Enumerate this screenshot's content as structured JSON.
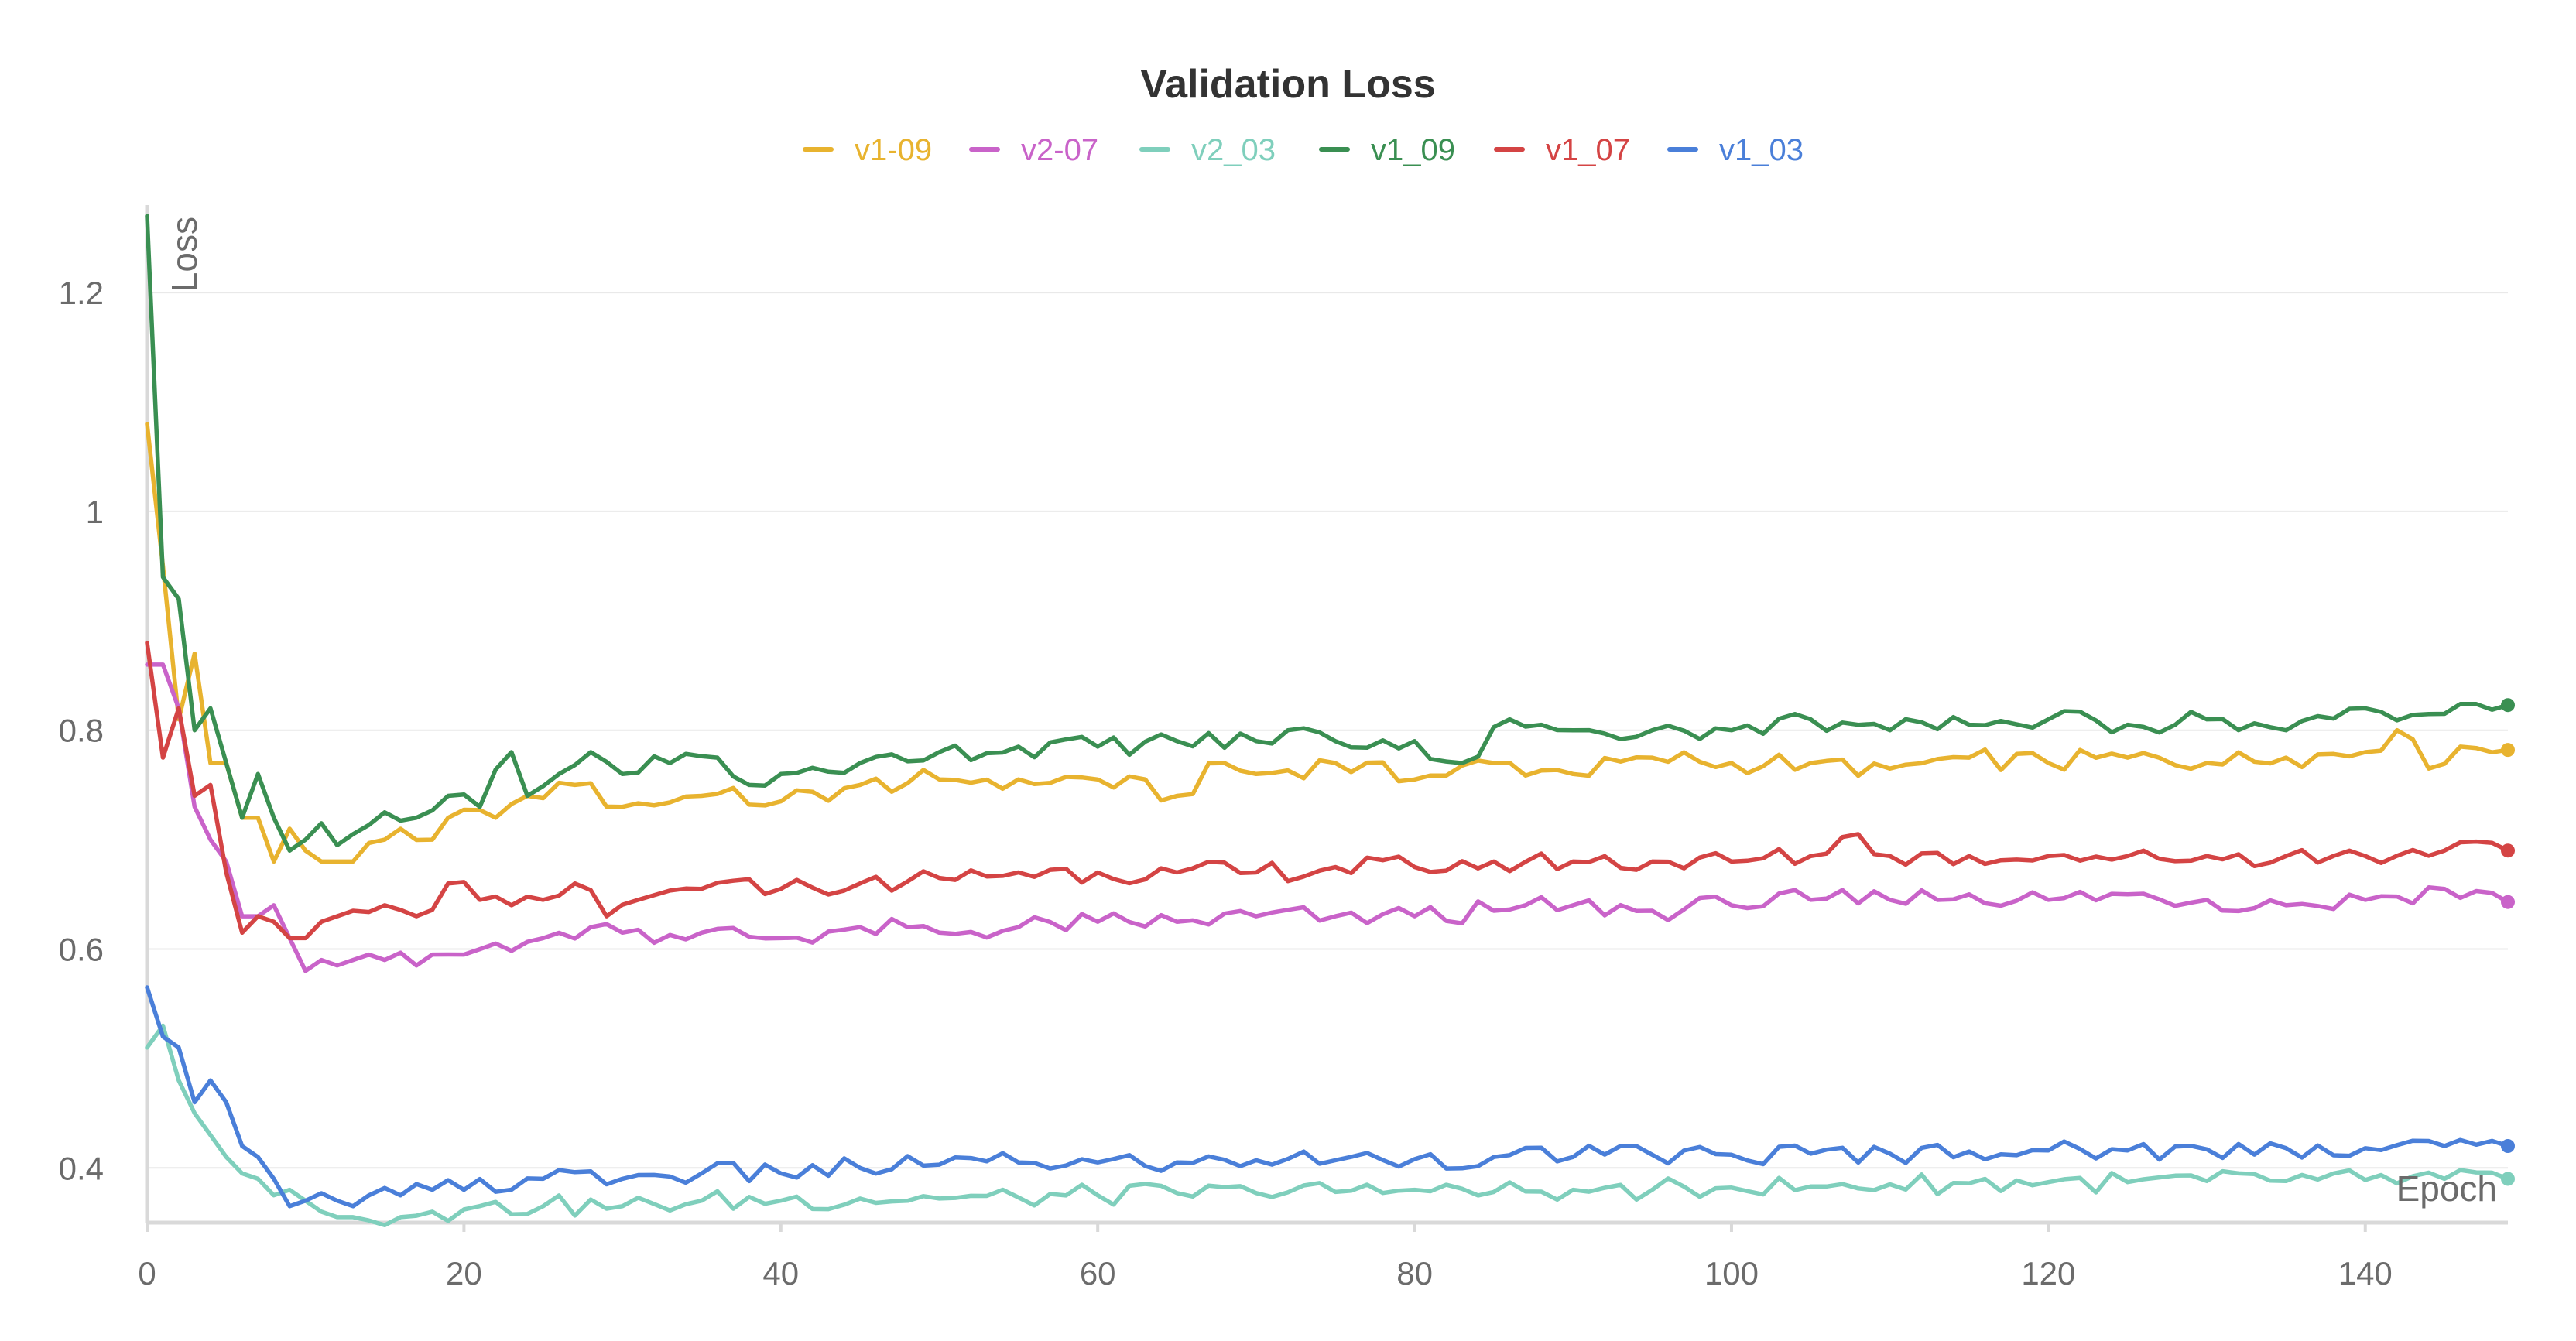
{
  "chart_data": {
    "type": "line",
    "title": "Validation Loss",
    "xlabel": "Epoch",
    "ylabel": "Loss",
    "xlim": [
      0,
      149
    ],
    "ylim": [
      0.35,
      1.28
    ],
    "x_ticks": [
      0,
      20,
      40,
      60,
      80,
      100,
      120,
      140
    ],
    "y_ticks": [
      0.4,
      0.6,
      0.8,
      1,
      1.2
    ],
    "y_tick_labels": [
      "0.4",
      "0.6",
      "0.8",
      "1",
      "1.2"
    ],
    "grid": true,
    "legend_position": "top-center",
    "series": [
      {
        "name": "v1-09",
        "color": "#e8b32f",
        "anchors": [
          [
            0,
            1.08
          ],
          [
            1,
            0.95
          ],
          [
            2,
            0.81
          ],
          [
            3,
            0.87
          ],
          [
            4,
            0.77
          ],
          [
            5,
            0.77
          ],
          [
            6,
            0.72
          ],
          [
            7,
            0.72
          ],
          [
            8,
            0.68
          ],
          [
            9,
            0.71
          ],
          [
            10,
            0.69
          ],
          [
            11,
            0.68
          ],
          [
            12,
            0.68
          ],
          [
            13,
            0.68
          ],
          [
            15,
            0.7
          ],
          [
            16,
            0.71
          ],
          [
            18,
            0.7
          ],
          [
            19,
            0.72
          ],
          [
            22,
            0.72
          ],
          [
            24,
            0.74
          ],
          [
            27,
            0.75
          ],
          [
            30,
            0.73
          ],
          [
            35,
            0.74
          ],
          [
            40,
            0.735
          ],
          [
            45,
            0.75
          ],
          [
            50,
            0.755
          ],
          [
            55,
            0.755
          ],
          [
            60,
            0.755
          ],
          [
            65,
            0.74
          ],
          [
            68,
            0.77
          ],
          [
            70,
            0.76
          ],
          [
            75,
            0.77
          ],
          [
            80,
            0.755
          ],
          [
            85,
            0.77
          ],
          [
            90,
            0.76
          ],
          [
            95,
            0.775
          ],
          [
            100,
            0.77
          ],
          [
            105,
            0.77
          ],
          [
            110,
            0.765
          ],
          [
            115,
            0.775
          ],
          [
            120,
            0.77
          ],
          [
            125,
            0.775
          ],
          [
            130,
            0.77
          ],
          [
            135,
            0.775
          ],
          [
            140,
            0.78
          ],
          [
            142,
            0.8
          ],
          [
            144,
            0.765
          ],
          [
            146,
            0.785
          ],
          [
            149,
            0.782
          ]
        ]
      },
      {
        "name": "v2-07",
        "color": "#c963c9",
        "anchors": [
          [
            0,
            0.86
          ],
          [
            1,
            0.86
          ],
          [
            2,
            0.82
          ],
          [
            3,
            0.73
          ],
          [
            4,
            0.7
          ],
          [
            5,
            0.68
          ],
          [
            6,
            0.63
          ],
          [
            7,
            0.63
          ],
          [
            8,
            0.64
          ],
          [
            9,
            0.61
          ],
          [
            10,
            0.58
          ],
          [
            11,
            0.59
          ],
          [
            12,
            0.585
          ],
          [
            13,
            0.59
          ],
          [
            15,
            0.59
          ],
          [
            17,
            0.585
          ],
          [
            18,
            0.595
          ],
          [
            20,
            0.595
          ],
          [
            22,
            0.605
          ],
          [
            25,
            0.61
          ],
          [
            28,
            0.62
          ],
          [
            30,
            0.615
          ],
          [
            35,
            0.615
          ],
          [
            40,
            0.61
          ],
          [
            45,
            0.62
          ],
          [
            50,
            0.615
          ],
          [
            55,
            0.62
          ],
          [
            60,
            0.625
          ],
          [
            65,
            0.625
          ],
          [
            70,
            0.63
          ],
          [
            75,
            0.63
          ],
          [
            80,
            0.63
          ],
          [
            85,
            0.635
          ],
          [
            90,
            0.64
          ],
          [
            95,
            0.635
          ],
          [
            100,
            0.64
          ],
          [
            105,
            0.645
          ],
          [
            110,
            0.645
          ],
          [
            115,
            0.65
          ],
          [
            120,
            0.645
          ],
          [
            125,
            0.65
          ],
          [
            130,
            0.645
          ],
          [
            135,
            0.64
          ],
          [
            140,
            0.645
          ],
          [
            145,
            0.655
          ],
          [
            149,
            0.643
          ]
        ]
      },
      {
        "name": "v2_03",
        "color": "#7fcfbc",
        "anchors": [
          [
            0,
            0.51
          ],
          [
            1,
            0.53
          ],
          [
            2,
            0.48
          ],
          [
            3,
            0.45
          ],
          [
            4,
            0.43
          ],
          [
            5,
            0.41
          ],
          [
            6,
            0.395
          ],
          [
            7,
            0.39
          ],
          [
            8,
            0.375
          ],
          [
            9,
            0.38
          ],
          [
            10,
            0.37
          ],
          [
            11,
            0.36
          ],
          [
            12,
            0.355
          ],
          [
            13,
            0.355
          ],
          [
            14,
            0.352
          ],
          [
            16,
            0.355
          ],
          [
            18,
            0.36
          ],
          [
            20,
            0.362
          ],
          [
            25,
            0.365
          ],
          [
            30,
            0.365
          ],
          [
            35,
            0.37
          ],
          [
            40,
            0.37
          ],
          [
            45,
            0.372
          ],
          [
            50,
            0.372
          ],
          [
            55,
            0.373
          ],
          [
            60,
            0.375
          ],
          [
            65,
            0.377
          ],
          [
            70,
            0.377
          ],
          [
            75,
            0.378
          ],
          [
            80,
            0.38
          ],
          [
            85,
            0.378
          ],
          [
            90,
            0.38
          ],
          [
            95,
            0.38
          ],
          [
            100,
            0.382
          ],
          [
            105,
            0.383
          ],
          [
            110,
            0.385
          ],
          [
            115,
            0.386
          ],
          [
            120,
            0.387
          ],
          [
            125,
            0.387
          ],
          [
            130,
            0.388
          ],
          [
            135,
            0.388
          ],
          [
            140,
            0.389
          ],
          [
            145,
            0.39
          ],
          [
            149,
            0.39
          ]
        ]
      },
      {
        "name": "v1_09",
        "color": "#3a8f52",
        "anchors": [
          [
            0,
            1.27
          ],
          [
            1,
            0.94
          ],
          [
            2,
            0.92
          ],
          [
            3,
            0.8
          ],
          [
            4,
            0.82
          ],
          [
            5,
            0.77
          ],
          [
            6,
            0.72
          ],
          [
            7,
            0.76
          ],
          [
            8,
            0.72
          ],
          [
            9,
            0.69
          ],
          [
            10,
            0.7
          ],
          [
            11,
            0.715
          ],
          [
            12,
            0.695
          ],
          [
            13,
            0.705
          ],
          [
            15,
            0.725
          ],
          [
            17,
            0.72
          ],
          [
            19,
            0.74
          ],
          [
            21,
            0.73
          ],
          [
            23,
            0.78
          ],
          [
            24,
            0.74
          ],
          [
            26,
            0.76
          ],
          [
            28,
            0.78
          ],
          [
            30,
            0.76
          ],
          [
            33,
            0.77
          ],
          [
            36,
            0.775
          ],
          [
            38,
            0.75
          ],
          [
            40,
            0.76
          ],
          [
            45,
            0.77
          ],
          [
            50,
            0.78
          ],
          [
            55,
            0.785
          ],
          [
            60,
            0.785
          ],
          [
            65,
            0.79
          ],
          [
            70,
            0.79
          ],
          [
            72,
            0.8
          ],
          [
            75,
            0.79
          ],
          [
            80,
            0.79
          ],
          [
            83,
            0.77
          ],
          [
            86,
            0.81
          ],
          [
            88,
            0.805
          ],
          [
            90,
            0.8
          ],
          [
            95,
            0.8
          ],
          [
            100,
            0.8
          ],
          [
            105,
            0.81
          ],
          [
            110,
            0.8
          ],
          [
            115,
            0.805
          ],
          [
            120,
            0.81
          ],
          [
            125,
            0.805
          ],
          [
            130,
            0.81
          ],
          [
            135,
            0.8
          ],
          [
            140,
            0.82
          ],
          [
            145,
            0.815
          ],
          [
            149,
            0.823
          ]
        ]
      },
      {
        "name": "v1_07",
        "color": "#d44444",
        "anchors": [
          [
            0,
            0.88
          ],
          [
            1,
            0.775
          ],
          [
            2,
            0.82
          ],
          [
            3,
            0.74
          ],
          [
            4,
            0.75
          ],
          [
            5,
            0.67
          ],
          [
            6,
            0.615
          ],
          [
            7,
            0.63
          ],
          [
            8,
            0.625
          ],
          [
            9,
            0.61
          ],
          [
            10,
            0.61
          ],
          [
            11,
            0.625
          ],
          [
            12,
            0.63
          ],
          [
            13,
            0.635
          ],
          [
            15,
            0.64
          ],
          [
            17,
            0.63
          ],
          [
            19,
            0.66
          ],
          [
            21,
            0.645
          ],
          [
            23,
            0.64
          ],
          [
            25,
            0.645
          ],
          [
            27,
            0.66
          ],
          [
            29,
            0.63
          ],
          [
            31,
            0.645
          ],
          [
            35,
            0.655
          ],
          [
            40,
            0.655
          ],
          [
            45,
            0.66
          ],
          [
            50,
            0.665
          ],
          [
            55,
            0.67
          ],
          [
            60,
            0.67
          ],
          [
            65,
            0.67
          ],
          [
            70,
            0.67
          ],
          [
            75,
            0.675
          ],
          [
            80,
            0.675
          ],
          [
            85,
            0.68
          ],
          [
            90,
            0.68
          ],
          [
            95,
            0.68
          ],
          [
            100,
            0.68
          ],
          [
            105,
            0.685
          ],
          [
            108,
            0.705
          ],
          [
            110,
            0.685
          ],
          [
            115,
            0.685
          ],
          [
            120,
            0.685
          ],
          [
            125,
            0.685
          ],
          [
            130,
            0.685
          ],
          [
            135,
            0.685
          ],
          [
            140,
            0.685
          ],
          [
            145,
            0.69
          ],
          [
            149,
            0.69
          ]
        ]
      },
      {
        "name": "v1_03",
        "color": "#4a7fd9",
        "anchors": [
          [
            0,
            0.565
          ],
          [
            1,
            0.52
          ],
          [
            2,
            0.51
          ],
          [
            3,
            0.46
          ],
          [
            4,
            0.48
          ],
          [
            5,
            0.46
          ],
          [
            6,
            0.42
          ],
          [
            7,
            0.41
          ],
          [
            8,
            0.39
          ],
          [
            9,
            0.365
          ],
          [
            10,
            0.37
          ],
          [
            12,
            0.37
          ],
          [
            13,
            0.365
          ],
          [
            14,
            0.375
          ],
          [
            16,
            0.375
          ],
          [
            18,
            0.38
          ],
          [
            20,
            0.38
          ],
          [
            25,
            0.39
          ],
          [
            30,
            0.39
          ],
          [
            35,
            0.395
          ],
          [
            40,
            0.395
          ],
          [
            45,
            0.4
          ],
          [
            50,
            0.403
          ],
          [
            55,
            0.405
          ],
          [
            60,
            0.405
          ],
          [
            65,
            0.405
          ],
          [
            70,
            0.407
          ],
          [
            75,
            0.407
          ],
          [
            80,
            0.408
          ],
          [
            85,
            0.41
          ],
          [
            90,
            0.41
          ],
          [
            95,
            0.412
          ],
          [
            100,
            0.412
          ],
          [
            105,
            0.413
          ],
          [
            110,
            0.413
          ],
          [
            115,
            0.415
          ],
          [
            120,
            0.416
          ],
          [
            125,
            0.416
          ],
          [
            130,
            0.417
          ],
          [
            135,
            0.418
          ],
          [
            140,
            0.418
          ],
          [
            145,
            0.42
          ],
          [
            149,
            0.42
          ]
        ]
      }
    ]
  }
}
